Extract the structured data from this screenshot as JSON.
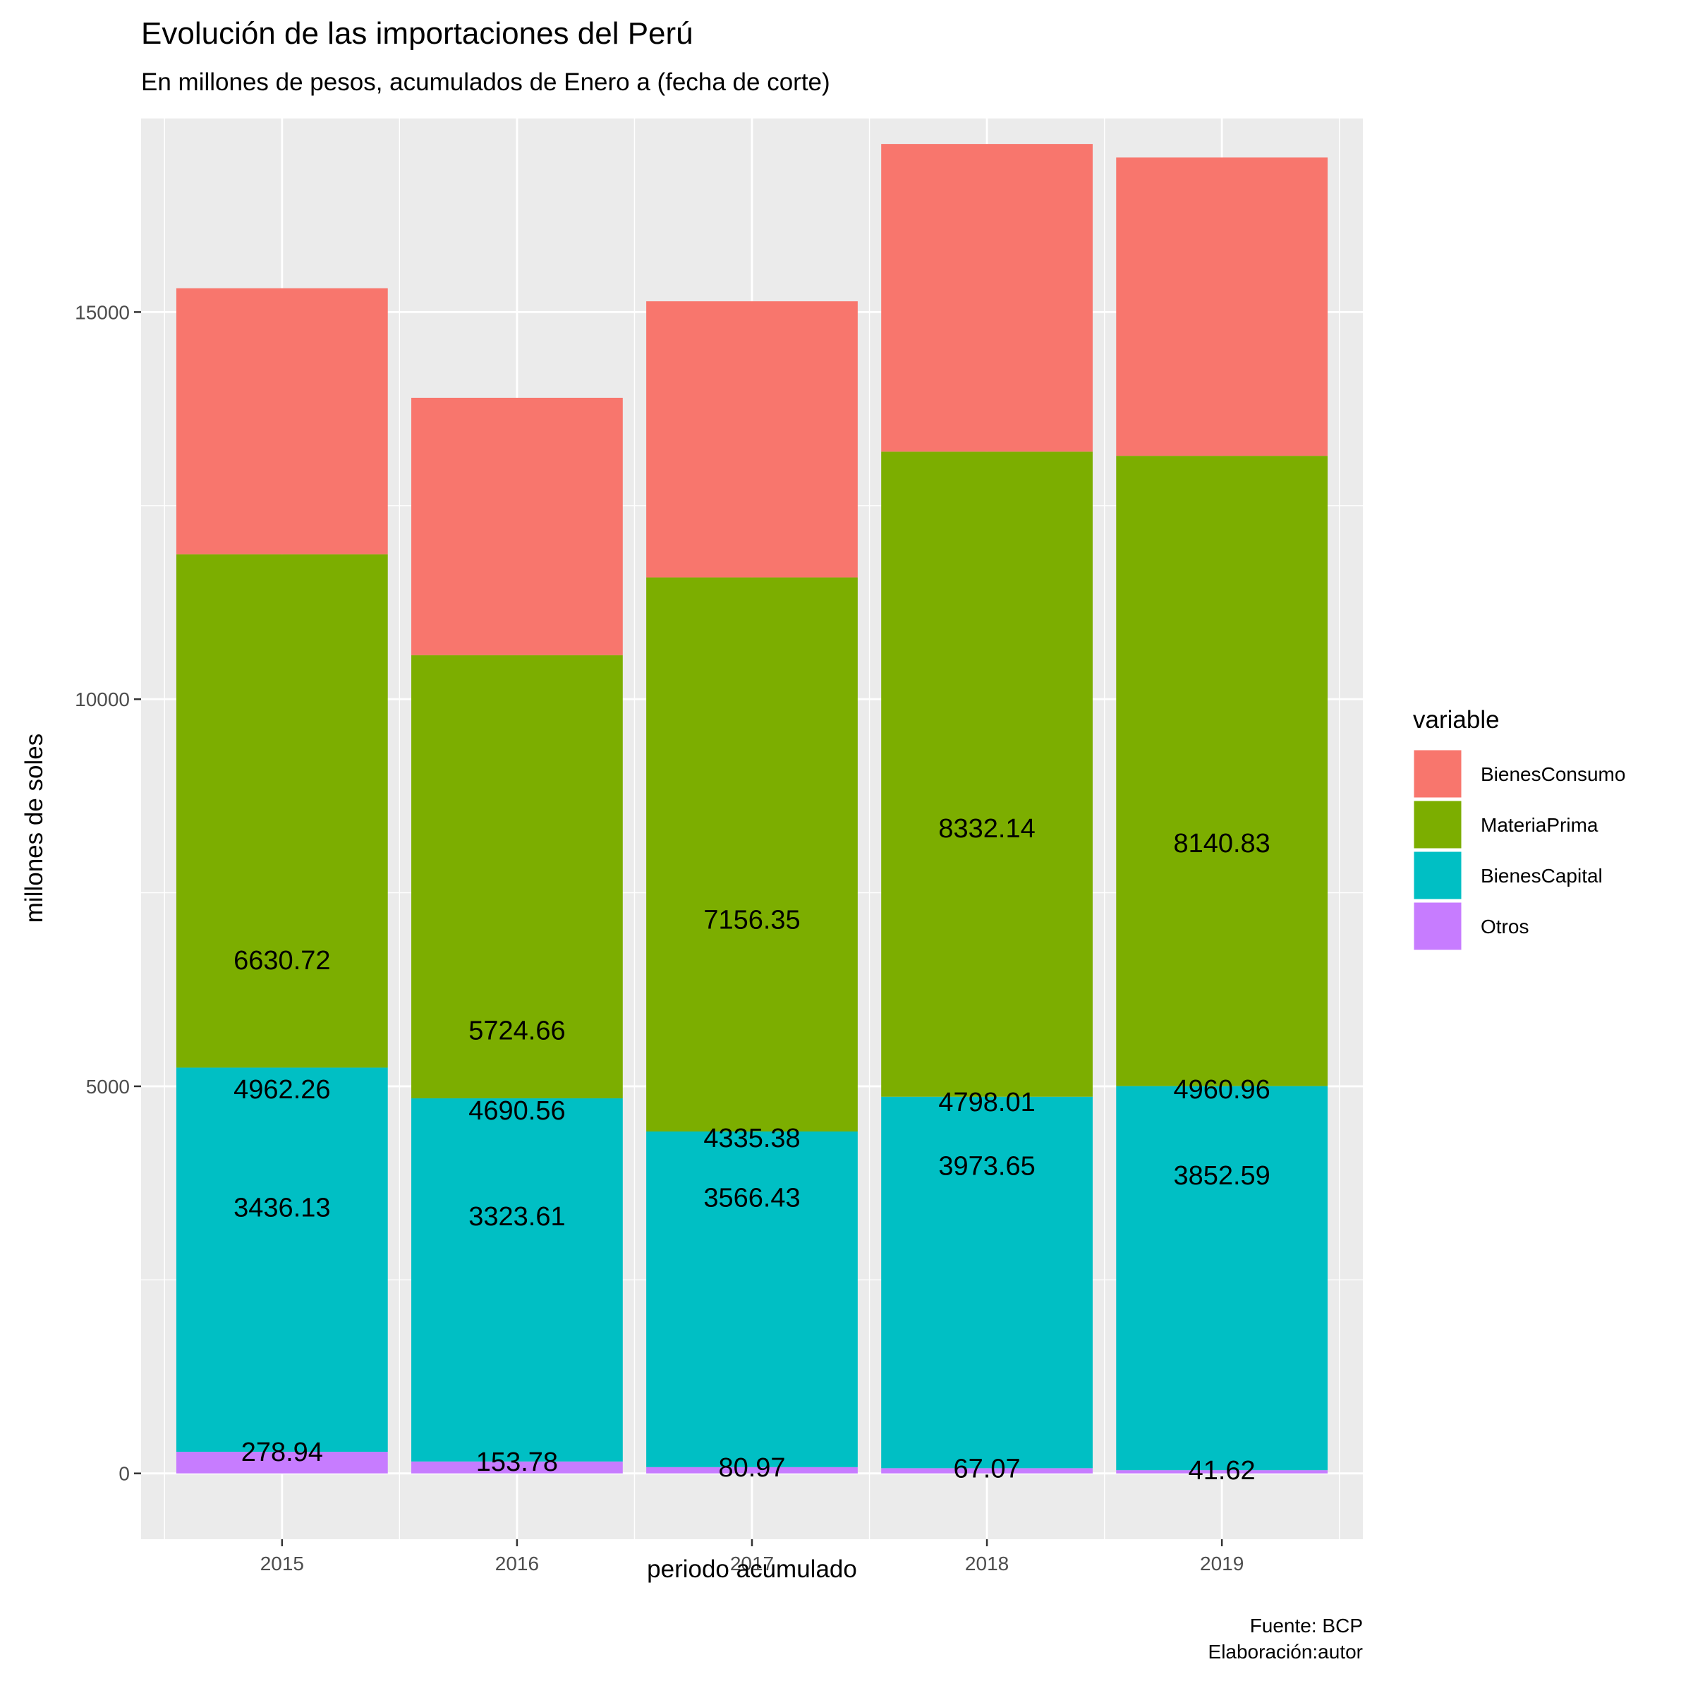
{
  "chart_data": {
    "type": "bar",
    "stacked": true,
    "title": "Evolución de las importaciones del Perú",
    "subtitle": "En millones de pesos, acumulados de Enero a (fecha de corte)",
    "xlabel": "periodo acumulado",
    "ylabel": "millones de soles",
    "categories": [
      "2015",
      "2016",
      "2017",
      "2018",
      "2019"
    ],
    "y_ticks": [
      0,
      5000,
      10000,
      15000
    ],
    "ylim": [
      -850,
      17500
    ],
    "grid": true,
    "legend_title": "variable",
    "legend_position": "right",
    "series": [
      {
        "name": "BienesConsumo",
        "color": "#F8766D",
        "values": [
          3436.13,
          3323.61,
          3566.43,
          3973.65,
          3852.59
        ]
      },
      {
        "name": "MateriaPrima",
        "color": "#7CAE00",
        "values": [
          6630.72,
          5724.66,
          7156.35,
          8332.14,
          8140.83
        ]
      },
      {
        "name": "BienesCapital",
        "color": "#00BFC4",
        "values": [
          4962.26,
          4690.56,
          4335.38,
          4798.01,
          4960.96
        ]
      },
      {
        "name": "Otros",
        "color": "#C77CFF",
        "values": [
          278.94,
          153.78,
          80.97,
          67.07,
          41.62
        ]
      }
    ],
    "caption": [
      "Fuente: BCP",
      "Elaboración:autor"
    ]
  }
}
